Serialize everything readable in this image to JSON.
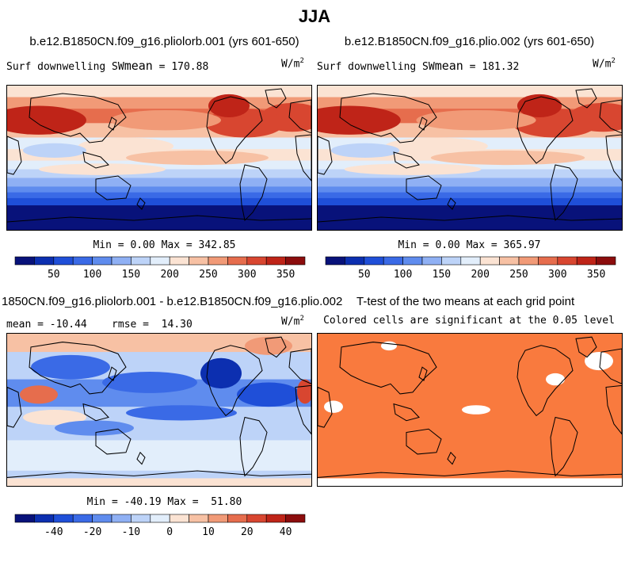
{
  "figure": {
    "title": "JJA"
  },
  "panels": [
    {
      "title": "b.e12.B1850CN.f09_g16.pliolorb.001 (yrs 601-650)",
      "left_label": "Surf downwelling SW",
      "stat_label": "mean",
      "stat_value": "= 170.88",
      "units": "W/m",
      "units_exp": "2",
      "minmax": "Min =   0.00 Max = 342.85",
      "colorbar": {
        "ticks": [
          "50",
          "100",
          "150",
          "200",
          "250",
          "300",
          "350"
        ],
        "palette": "sw"
      }
    },
    {
      "title": "b.e12.B1850CN.f09_g16.plio.002 (yrs 601-650)",
      "left_label": "Surf downwelling SW",
      "stat_label": "mean",
      "stat_value": "= 181.32",
      "units": "W/m",
      "units_exp": "2",
      "minmax": "Min =   0.00 Max = 365.97",
      "colorbar": {
        "ticks": [
          "50",
          "100",
          "150",
          "200",
          "250",
          "300",
          "350"
        ],
        "palette": "sw"
      }
    },
    {
      "title": "1850CN.f09_g16.pliolorb.001 - b.e12.B1850CN.f09_g16.plio.002",
      "left_label": "mean = -10.44    rmse =  14.30",
      "units": "W/m",
      "units_exp": "2",
      "minmax": "Min = -40.19 Max =  51.80",
      "colorbar": {
        "ticks": [
          "-40",
          "-20",
          "-10",
          "0",
          "10",
          "20",
          "40"
        ],
        "palette": "diff"
      }
    },
    {
      "title": "T-test of the two means at each grid point",
      "subtitle": "Colored cells are significant at the 0.05 level"
    }
  ],
  "colors": {
    "sw_palette": [
      "#08127a",
      "#0c2fb0",
      "#1f4fd8",
      "#3a6ae6",
      "#5f8cee",
      "#8fb0f4",
      "#bdd3f8",
      "#e2eefb",
      "#fbe3d3",
      "#f7c1a4",
      "#f19a77",
      "#e66d4d",
      "#d84630",
      "#bf2418",
      "#8c0d0d"
    ],
    "diff_palette": [
      "#08127a",
      "#0c2fb0",
      "#1f4fd8",
      "#3a6ae6",
      "#5f8cee",
      "#8fb0f4",
      "#bdd3f8",
      "#e2eefb",
      "#fbe3d3",
      "#f7c1a4",
      "#f19a77",
      "#e66d4d",
      "#d84630",
      "#bf2418",
      "#8c0d0d"
    ],
    "significant": "#f97a3e",
    "coastline": "#000000"
  },
  "chart_data": [
    {
      "type": "heatmap",
      "title": "b.e12.B1850CN.f09_g16.pliolorb.001 (yrs 601-650)",
      "variable": "Surf downwelling SW",
      "units": "W/m2",
      "mean": 170.88,
      "min": 0.0,
      "max": 342.85,
      "colorbar_ticks": [
        50,
        100,
        150,
        200,
        250,
        300,
        350
      ]
    },
    {
      "type": "heatmap",
      "title": "b.e12.B1850CN.f09_g16.plio.002 (yrs 601-650)",
      "variable": "Surf downwelling SW",
      "units": "W/m2",
      "mean": 181.32,
      "min": 0.0,
      "max": 365.97,
      "colorbar_ticks": [
        50,
        100,
        150,
        200,
        250,
        300,
        350
      ]
    },
    {
      "type": "heatmap",
      "title": "1850CN.f09_g16.pliolorb.001 - b.e12.B1850CN.f09_g16.plio.002",
      "units": "W/m2",
      "mean": -10.44,
      "rmse": 14.3,
      "min": -40.19,
      "max": 51.8,
      "colorbar_ticks": [
        -40,
        -20,
        -10,
        0,
        10,
        20,
        40
      ]
    },
    {
      "type": "heatmap",
      "title": "T-test of the two means at each grid point",
      "subtitle": "Colored cells are significant at the 0.05 level"
    }
  ]
}
